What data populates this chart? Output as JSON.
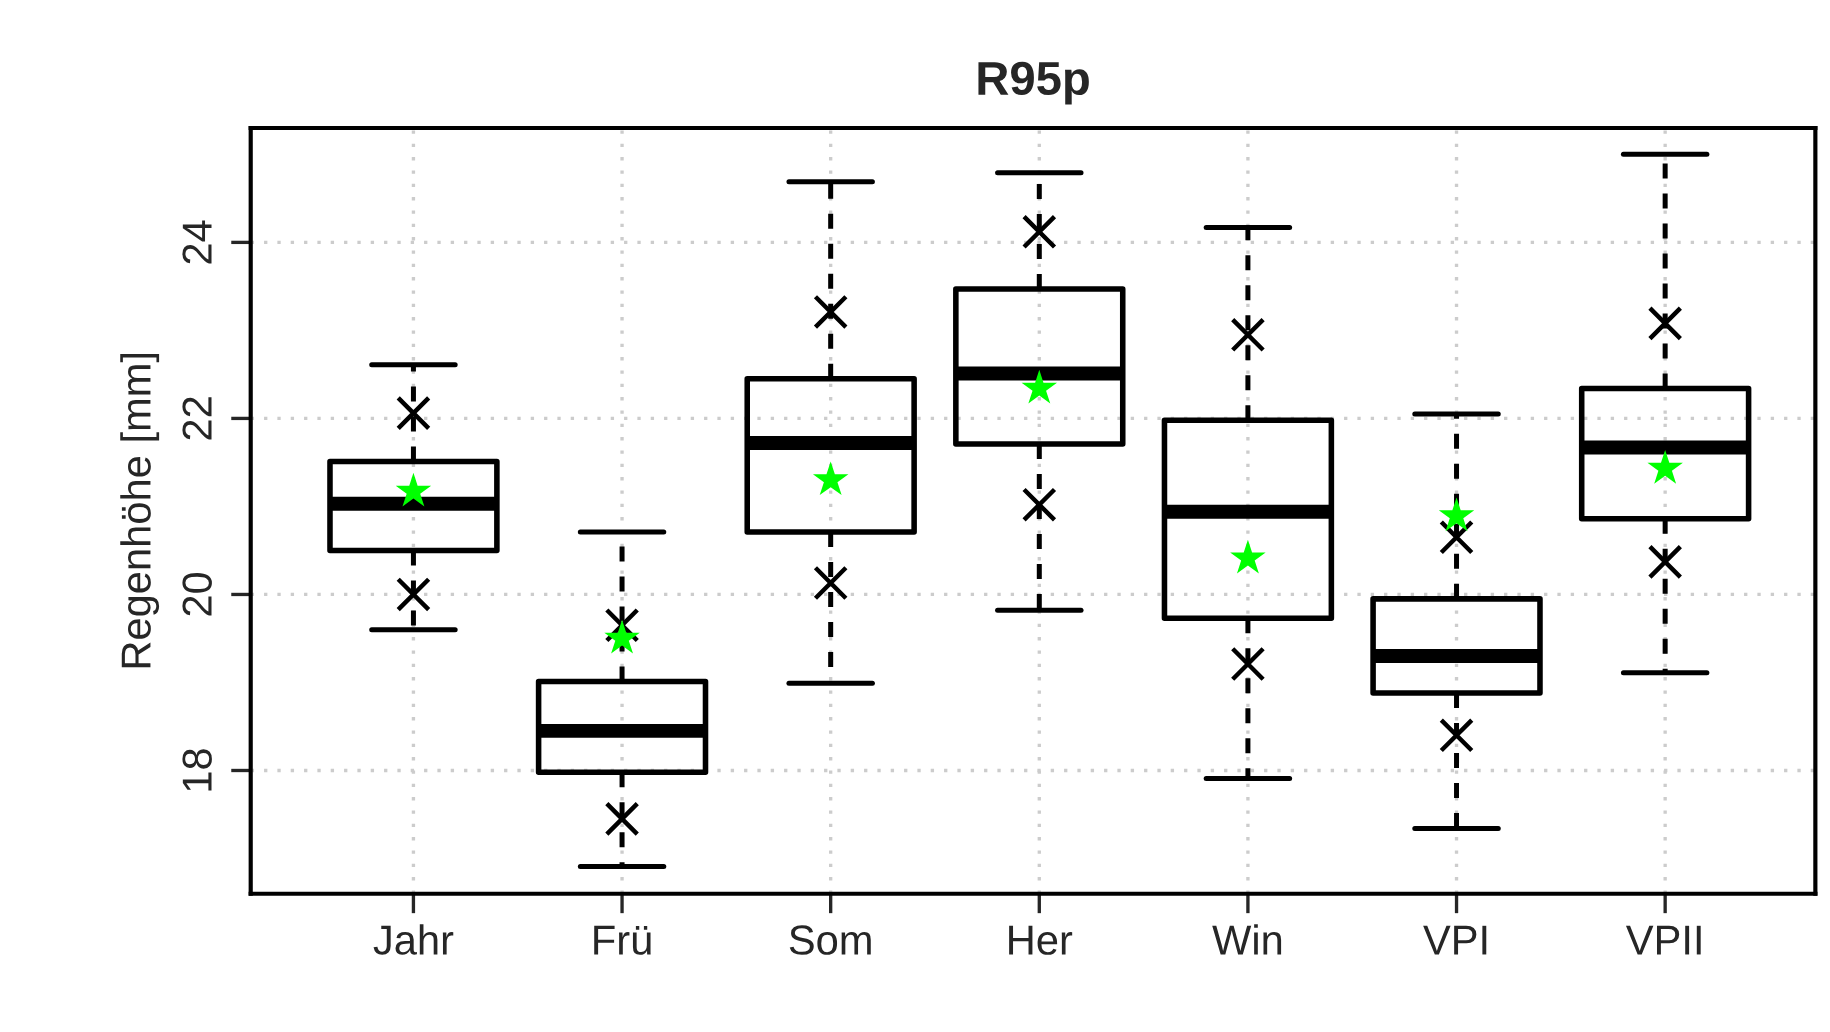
{
  "chart_data": {
    "type": "box",
    "title": "R95p",
    "ylabel": "Regenhöhe [mm]",
    "categories": [
      "Jahr",
      "Frü",
      "Som",
      "Her",
      "Win",
      "VPI",
      "VPII"
    ],
    "ylim": [
      16.6,
      25.3
    ],
    "yticks": [
      18,
      20,
      22,
      24
    ],
    "grid": true,
    "legend": false,
    "series": [
      {
        "color": "#000000",
        "boxes": [
          {
            "low": 19.6,
            "q1": 20.5,
            "median": 21.03,
            "q3": 21.51,
            "high": 22.61
          },
          {
            "low": 16.91,
            "q1": 17.98,
            "median": 18.45,
            "q3": 19.01,
            "high": 20.71
          },
          {
            "low": 18.99,
            "q1": 20.71,
            "median": 21.72,
            "q3": 22.45,
            "high": 24.69
          },
          {
            "low": 19.82,
            "q1": 21.71,
            "median": 22.51,
            "q3": 23.47,
            "high": 24.79
          },
          {
            "low": 17.91,
            "q1": 19.73,
            "median": 20.94,
            "q3": 21.98,
            "high": 24.17
          },
          {
            "low": 17.34,
            "q1": 18.88,
            "median": 19.3,
            "q3": 19.95,
            "high": 22.05
          },
          {
            "low": 19.11,
            "q1": 20.86,
            "median": 21.67,
            "q3": 22.34,
            "high": 25.0
          }
        ]
      },
      {
        "type": "scatter",
        "color": "#000000",
        "marker": "cross",
        "x": [
          "Jahr",
          "Frü",
          "Som",
          "Her",
          "Win",
          "VPI",
          "VPII"
        ],
        "values": [
          22.06,
          19.65,
          23.21,
          24.12,
          22.95,
          20.65,
          23.08
        ]
      },
      {
        "type": "scatter",
        "color": "#000000",
        "marker": "cross",
        "x": [
          "Jahr",
          "Frü",
          "Som",
          "Her",
          "Win",
          "VPI",
          "VPII"
        ],
        "values": [
          20.0,
          17.45,
          20.13,
          21.02,
          19.21,
          18.4,
          20.37
        ]
      },
      {
        "type": "scatter",
        "color": "#00ff00",
        "marker": "star",
        "x": [
          "Jahr",
          "Frü",
          "Som",
          "Her",
          "Win",
          "VPI",
          "VPII"
        ],
        "values": [
          21.17,
          19.5,
          21.3,
          22.34,
          20.41,
          20.89,
          21.43
        ]
      }
    ]
  }
}
